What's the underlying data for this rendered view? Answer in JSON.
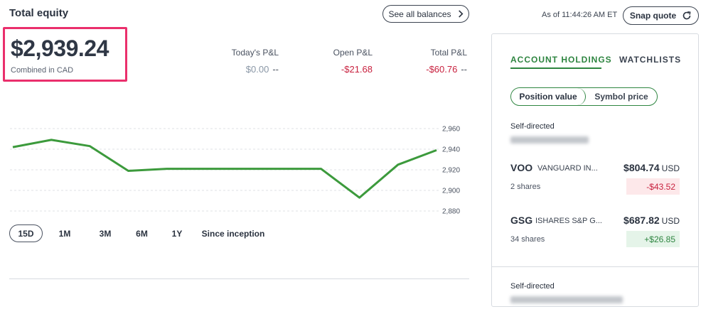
{
  "header": {
    "title": "Total equity",
    "see_all_label": "See all balances"
  },
  "equity": {
    "value": "$2,939.24",
    "subtitle": "Combined in CAD",
    "highlight_color": "#ea2f6c"
  },
  "pnl": {
    "todays": {
      "label": "Today's P&L",
      "value": "$0.00",
      "suffix": "--"
    },
    "open": {
      "label": "Open P&L",
      "value": "-$21.68"
    },
    "total": {
      "label": "Total P&L",
      "value": "-$60.76",
      "suffix": "--"
    }
  },
  "chart_data": {
    "type": "line",
    "y_ticks": [
      "2,960",
      "2,940",
      "2,920",
      "2,900",
      "2,880"
    ],
    "ylim": [
      2880,
      2960
    ],
    "series": [
      {
        "values": [
          2942,
          2949,
          2943,
          2919,
          2921,
          2921,
          2921,
          2921,
          2921,
          2893,
          2925,
          2939
        ]
      }
    ],
    "line_color": "#3c9a3c",
    "grid": true
  },
  "ranges": {
    "options": [
      "15D",
      "1M",
      "3M",
      "6M",
      "1Y",
      "Since inception"
    ],
    "selected": "15D"
  },
  "quote": {
    "as_of": "As of 11:44:26 AM ET",
    "snap_label": "Snap quote"
  },
  "panel": {
    "tabs": [
      "ACCOUNT HOLDINGS",
      "WATCHLISTS"
    ],
    "active_tab": "ACCOUNT HOLDINGS",
    "toggle": [
      "Position value",
      "Symbol price"
    ],
    "account1_label": "Self-directed",
    "account2_label": "Self-directed",
    "holdings": [
      {
        "symbol": "VOO",
        "name": "VANGUARD IN...",
        "value": "$804.74",
        "currency": "USD",
        "shares": "2 shares",
        "change": "-$43.52"
      },
      {
        "symbol": "GSG",
        "name": "ISHARES S&P G...",
        "value": "$687.82",
        "currency": "USD",
        "shares": "34 shares",
        "change": "+$26.85"
      }
    ],
    "accent_color": "#2e8540"
  }
}
